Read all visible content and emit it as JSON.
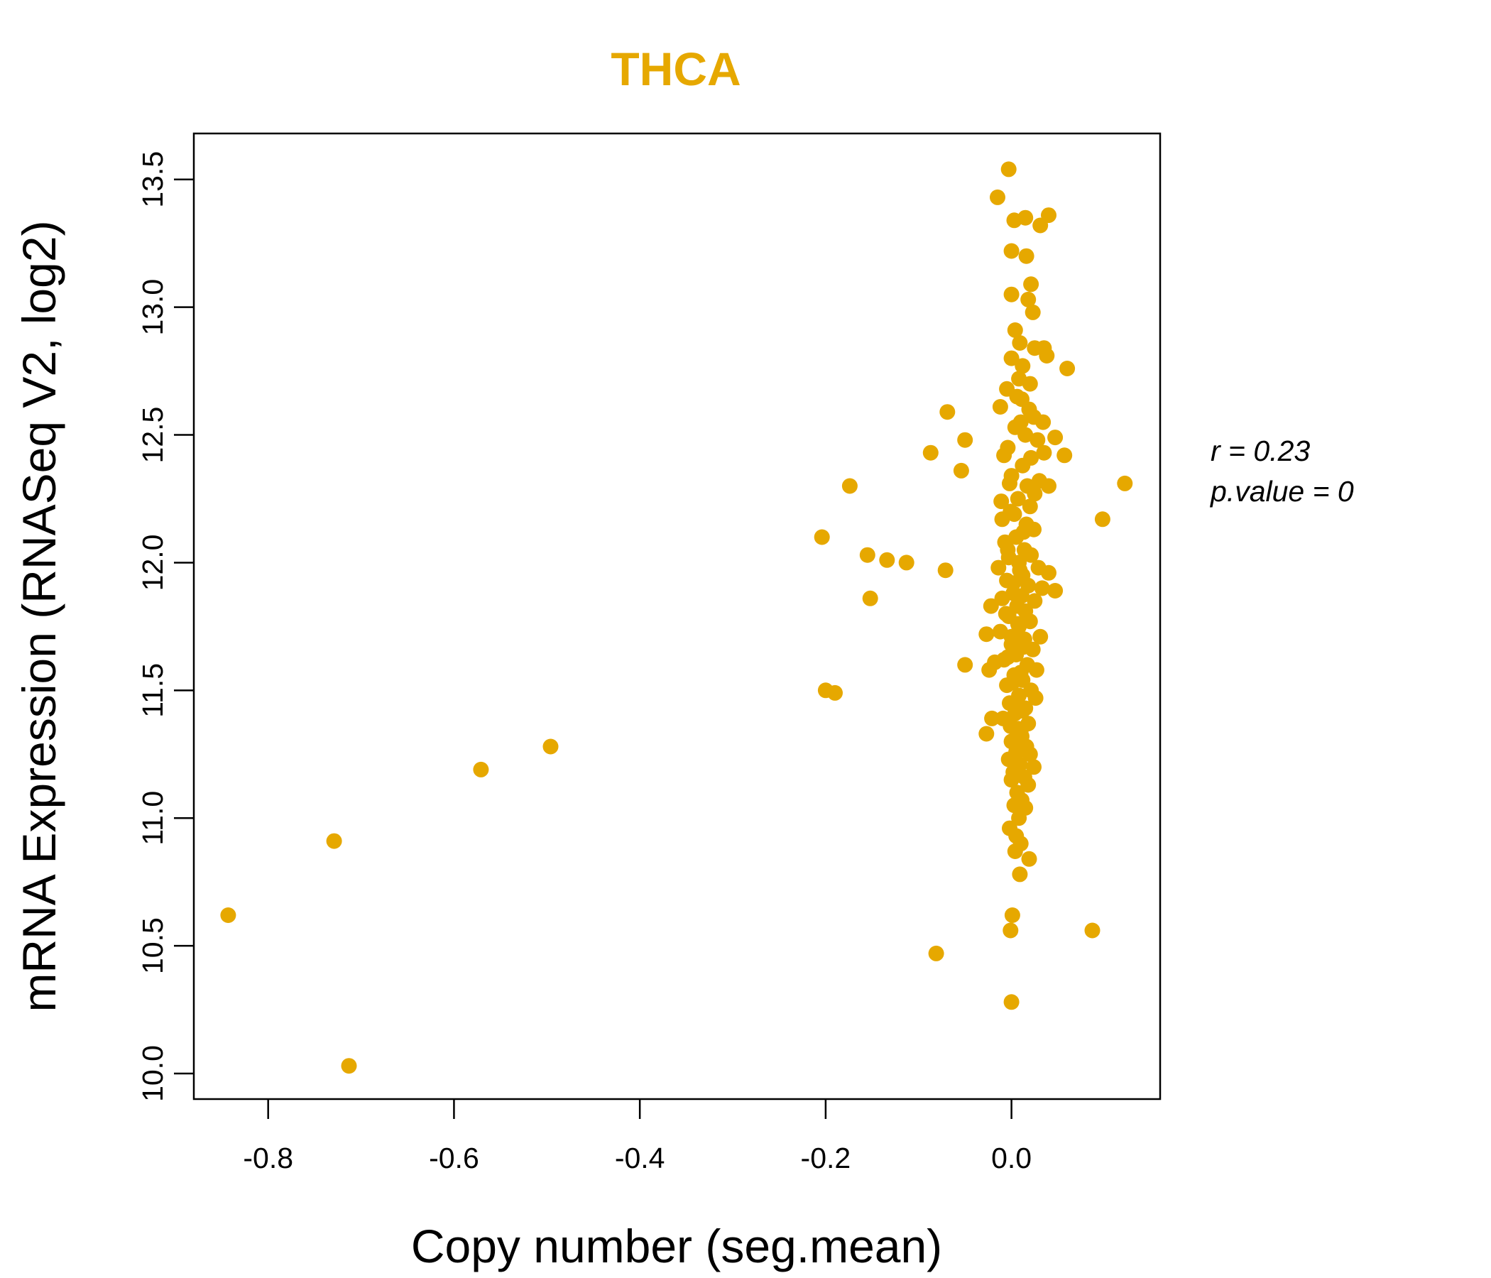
{
  "chart_data": {
    "type": "scatter",
    "title": "THCA",
    "xlabel": "Copy number (seg.mean)",
    "ylabel": "mRNA Expression (RNASeq V2, log2)",
    "xlim": [
      -0.88,
      0.16
    ],
    "ylim": [
      9.9,
      13.68
    ],
    "x_ticks": [
      -0.8,
      -0.6,
      -0.4,
      -0.2,
      0.0
    ],
    "x_tick_labels": [
      "-0.8",
      "-0.6",
      "-0.4",
      "-0.2",
      "0.0"
    ],
    "y_ticks": [
      10.0,
      10.5,
      11.0,
      11.5,
      12.0,
      12.5,
      13.0,
      13.5
    ],
    "y_tick_labels": [
      "10.0",
      "10.5",
      "11.0",
      "11.5",
      "12.0",
      "12.5",
      "13.0",
      "13.5"
    ],
    "point_color": "#E6A800",
    "title_color": "#E6A800",
    "stats": {
      "r_label": "r = 0.23",
      "p_label": "p.value = 0"
    },
    "points": [
      [
        -0.843,
        10.62
      ],
      [
        -0.713,
        10.03
      ],
      [
        -0.729,
        10.91
      ],
      [
        -0.571,
        11.19
      ],
      [
        -0.496,
        11.28
      ],
      [
        -0.2,
        11.5
      ],
      [
        -0.19,
        11.49
      ],
      [
        -0.204,
        12.1
      ],
      [
        -0.174,
        12.3
      ],
      [
        -0.155,
        12.03
      ],
      [
        -0.152,
        11.86
      ],
      [
        -0.134,
        12.01
      ],
      [
        -0.113,
        12.0
      ],
      [
        -0.087,
        12.43
      ],
      [
        -0.069,
        12.59
      ],
      [
        -0.054,
        12.36
      ],
      [
        -0.05,
        12.48
      ],
      [
        -0.071,
        11.97
      ],
      [
        -0.05,
        11.6
      ],
      [
        -0.081,
        10.47
      ],
      [
        0.0,
        10.28
      ],
      [
        -0.001,
        10.56
      ],
      [
        0.001,
        10.62
      ],
      [
        0.087,
        10.56
      ],
      [
        0.098,
        12.17
      ],
      [
        0.122,
        12.31
      ],
      [
        0.06,
        12.76
      ],
      [
        0.057,
        12.42
      ],
      [
        0.047,
        12.49
      ],
      [
        0.047,
        11.89
      ],
      [
        0.04,
        13.36
      ],
      [
        0.031,
        13.32
      ],
      [
        0.015,
        13.35
      ],
      [
        0.003,
        13.34
      ],
      [
        -0.003,
        13.54
      ],
      [
        -0.015,
        13.43
      ],
      [
        0.0,
        13.22
      ],
      [
        0.016,
        13.2
      ],
      [
        0.021,
        13.09
      ],
      [
        0.018,
        13.03
      ],
      [
        0.0,
        13.05
      ],
      [
        0.023,
        12.98
      ],
      [
        0.004,
        12.91
      ],
      [
        0.009,
        12.86
      ],
      [
        0.025,
        12.84
      ],
      [
        0.035,
        12.84
      ],
      [
        0.038,
        12.81
      ],
      [
        0.0,
        12.8
      ],
      [
        0.012,
        12.77
      ],
      [
        0.008,
        12.72
      ],
      [
        0.02,
        12.7
      ],
      [
        -0.005,
        12.68
      ],
      [
        0.011,
        12.64
      ],
      [
        -0.012,
        12.61
      ],
      [
        0.019,
        12.6
      ],
      [
        0.024,
        12.57
      ],
      [
        0.034,
        12.55
      ],
      [
        0.004,
        12.53
      ],
      [
        0.015,
        12.5
      ],
      [
        0.028,
        12.48
      ],
      [
        -0.004,
        12.45
      ],
      [
        0.035,
        12.43
      ],
      [
        0.021,
        12.41
      ],
      [
        -0.008,
        12.42
      ],
      [
        0.012,
        12.38
      ],
      [
        0.0,
        12.34
      ],
      [
        0.03,
        12.32
      ],
      [
        0.04,
        12.3
      ],
      [
        0.017,
        12.3
      ],
      [
        -0.002,
        12.31
      ],
      [
        0.025,
        12.27
      ],
      [
        0.007,
        12.25
      ],
      [
        -0.011,
        12.24
      ],
      [
        0.02,
        12.22
      ],
      [
        0.003,
        12.19
      ],
      [
        -0.01,
        12.17
      ],
      [
        0.016,
        12.15
      ],
      [
        0.024,
        12.13
      ],
      [
        0.005,
        12.1
      ],
      [
        -0.007,
        12.08
      ],
      [
        0.014,
        12.05
      ],
      [
        0.021,
        12.03
      ],
      [
        -0.003,
        12.02
      ],
      [
        0.008,
        12.0
      ],
      [
        -0.014,
        11.98
      ],
      [
        0.029,
        11.98
      ],
      [
        0.04,
        11.96
      ],
      [
        0.012,
        11.95
      ],
      [
        -0.005,
        11.93
      ],
      [
        0.018,
        11.91
      ],
      [
        0.033,
        11.9
      ],
      [
        0.002,
        11.88
      ],
      [
        -0.01,
        11.86
      ],
      [
        0.025,
        11.85
      ],
      [
        0.006,
        11.83
      ],
      [
        -0.022,
        11.83
      ],
      [
        0.015,
        11.81
      ],
      [
        -0.003,
        11.79
      ],
      [
        0.02,
        11.77
      ],
      [
        0.008,
        11.75
      ],
      [
        -0.012,
        11.73
      ],
      [
        -0.027,
        11.72
      ],
      [
        0.031,
        11.71
      ],
      [
        0.014,
        11.7
      ],
      [
        0.0,
        11.68
      ],
      [
        0.023,
        11.66
      ],
      [
        0.005,
        11.64
      ],
      [
        -0.008,
        11.62
      ],
      [
        -0.018,
        11.61
      ],
      [
        0.017,
        11.6
      ],
      [
        0.027,
        11.58
      ],
      [
        -0.024,
        11.58
      ],
      [
        0.003,
        11.56
      ],
      [
        0.012,
        11.54
      ],
      [
        -0.005,
        11.52
      ],
      [
        0.021,
        11.5
      ],
      [
        0.008,
        11.48
      ],
      [
        0.026,
        11.47
      ],
      [
        -0.002,
        11.45
      ],
      [
        0.015,
        11.43
      ],
      [
        0.004,
        11.41
      ],
      [
        -0.009,
        11.39
      ],
      [
        -0.021,
        11.39
      ],
      [
        0.018,
        11.37
      ],
      [
        0.007,
        11.35
      ],
      [
        -0.027,
        11.33
      ],
      [
        0.011,
        11.32
      ],
      [
        0.0,
        11.3
      ],
      [
        0.016,
        11.28
      ],
      [
        0.005,
        11.26
      ],
      [
        0.02,
        11.25
      ],
      [
        -0.003,
        11.23
      ],
      [
        0.009,
        11.21
      ],
      [
        0.024,
        11.2
      ],
      [
        0.002,
        11.18
      ],
      [
        0.014,
        11.16
      ],
      [
        0.0,
        11.15
      ],
      [
        0.018,
        11.13
      ],
      [
        0.006,
        11.1
      ],
      [
        0.011,
        11.07
      ],
      [
        0.003,
        11.05
      ],
      [
        0.015,
        11.04
      ],
      [
        0.008,
        11.0
      ],
      [
        -0.002,
        10.96
      ],
      [
        0.005,
        10.93
      ],
      [
        0.01,
        10.9
      ],
      [
        0.004,
        10.87
      ],
      [
        0.019,
        10.84
      ],
      [
        0.009,
        10.78
      ],
      [
        0.006,
        12.65
      ],
      [
        0.01,
        12.55
      ],
      [
        -0.001,
        12.2
      ],
      [
        0.013,
        12.12
      ],
      [
        -0.004,
        12.05
      ],
      [
        0.009,
        11.97
      ],
      [
        0.002,
        11.92
      ],
      [
        0.011,
        11.87
      ],
      [
        -0.006,
        11.8
      ],
      [
        0.007,
        11.76
      ],
      [
        0.0,
        11.71
      ],
      [
        0.013,
        11.67
      ],
      [
        -0.004,
        11.63
      ],
      [
        0.01,
        11.57
      ],
      [
        0.001,
        11.53
      ],
      [
        0.006,
        11.46
      ],
      [
        0.012,
        11.42
      ],
      [
        -0.001,
        11.36
      ],
      [
        0.008,
        11.31
      ],
      [
        0.004,
        11.24
      ],
      [
        0.01,
        11.34
      ]
    ]
  }
}
